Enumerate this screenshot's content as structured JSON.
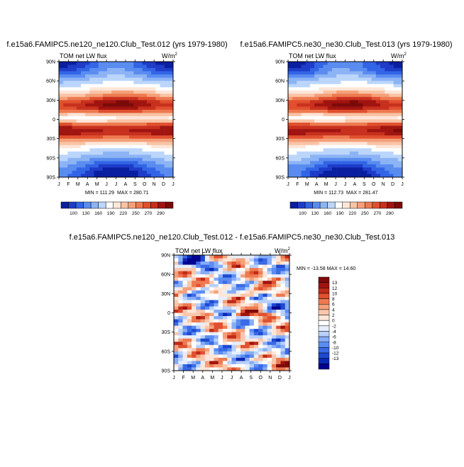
{
  "colors": {
    "panel_scale": [
      "#0a1ea0",
      "#1e3cc8",
      "#3264e6",
      "#5a8cf0",
      "#8cb4f5",
      "#bcd6fb",
      "#ffffff",
      "#fde6d8",
      "#f9c3a5",
      "#f4a07a",
      "#ee7a50",
      "#e0502f",
      "#c8301e",
      "#a01410",
      "#7a0a08"
    ],
    "diff_scale": [
      "#000090",
      "#0a28b4",
      "#1e4ad2",
      "#3a6ae6",
      "#5a8cf2",
      "#86acf6",
      "#b8d0fb",
      "#e6efff",
      "#ffffff",
      "#fde6d8",
      "#f9c7ad",
      "#f4a07a",
      "#ee7a50",
      "#e0502f",
      "#c02a18",
      "#a01410",
      "#800a0a"
    ]
  },
  "chart_data": [
    {
      "type": "heatmap",
      "title": "f.e15a6.FAMIPC5.ne120_ne120.Club_Test.012 (yrs 1979-1980)",
      "left_label": "TOM net LW flux",
      "unit_prefix": "W/m",
      "unit_exp": "2",
      "x_ticks": [
        "J",
        "F",
        "M",
        "A",
        "M",
        "J",
        "J",
        "A",
        "S",
        "O",
        "N",
        "D",
        "J"
      ],
      "y_ticks": [
        "90N",
        "60N",
        "30N",
        "0",
        "30S",
        "60S",
        "90S"
      ],
      "min_label": "MIN = 111.29",
      "max_label": "MAX = 280.71",
      "colorbar_labels": [
        "100",
        "130",
        "160",
        "190",
        "220",
        "250",
        "270",
        "290"
      ],
      "zrange": [
        100,
        295
      ]
    },
    {
      "type": "heatmap",
      "title": "f.e15a6.FAMIPC5.ne30_ne30.Club_Test.013 (yrs 1979-1980)",
      "left_label": "TOM net LW flux",
      "unit_prefix": "W/m",
      "unit_exp": "2",
      "x_ticks": [
        "J",
        "F",
        "M",
        "A",
        "M",
        "J",
        "J",
        "A",
        "S",
        "O",
        "N",
        "D",
        "J"
      ],
      "y_ticks": [
        "90N",
        "60N",
        "30N",
        "0",
        "30S",
        "60S",
        "90S"
      ],
      "min_label": "MIN = 112.73",
      "max_label": "MAX = 281.47",
      "colorbar_labels": [
        "100",
        "130",
        "160",
        "190",
        "220",
        "250",
        "270",
        "290"
      ],
      "zrange": [
        100,
        295
      ]
    },
    {
      "type": "heatmap",
      "title": "f.e15a6.FAMIPC5.ne120_ne120.Club_Test.012 - f.e15a6.FAMIPC5.ne30_ne30.Club_Test.013",
      "left_label": "TOM net LW flux",
      "unit_prefix": "W/m",
      "unit_exp": "2",
      "x_ticks": [
        "J",
        "F",
        "M",
        "A",
        "M",
        "J",
        "J",
        "A",
        "S",
        "O",
        "N",
        "D",
        "J"
      ],
      "y_ticks": [
        "90N",
        "60N",
        "30N",
        "0",
        "30S",
        "60S",
        "90S"
      ],
      "minmax_label": "MIN = -13.58 MAX =  14.60",
      "colorbar_labels": [
        "13",
        "12",
        "10",
        "8",
        "6",
        "4",
        "2",
        "0",
        "-2",
        "-4",
        "-6",
        "-8",
        "-10",
        "-12",
        "-13"
      ],
      "zrange": [
        -14,
        14
      ]
    }
  ]
}
